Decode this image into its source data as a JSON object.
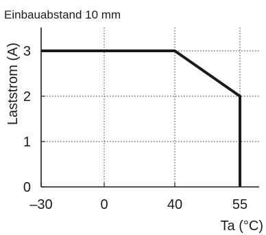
{
  "chart_data": {
    "type": "line",
    "title": "Einbauabstand 10 mm",
    "xlabel": "Ta (°C)",
    "ylabel": "Laststrom (A)",
    "x_ticks": [
      -30,
      0,
      40,
      55
    ],
    "x_tick_labels": [
      "–30",
      "0",
      "40",
      "55"
    ],
    "y_ticks": [
      0,
      1,
      2,
      3
    ],
    "y_tick_labels": [
      "0",
      "1",
      "2",
      "3"
    ],
    "xlim": [
      -30,
      60
    ],
    "ylim": [
      0,
      3.5
    ],
    "grid": true,
    "series": [
      {
        "x": [
          -30,
          40,
          55,
          55
        ],
        "y": [
          3,
          3,
          2,
          0
        ]
      }
    ],
    "colors": {
      "line": "#1a1a1a",
      "grid": "#333333"
    }
  }
}
